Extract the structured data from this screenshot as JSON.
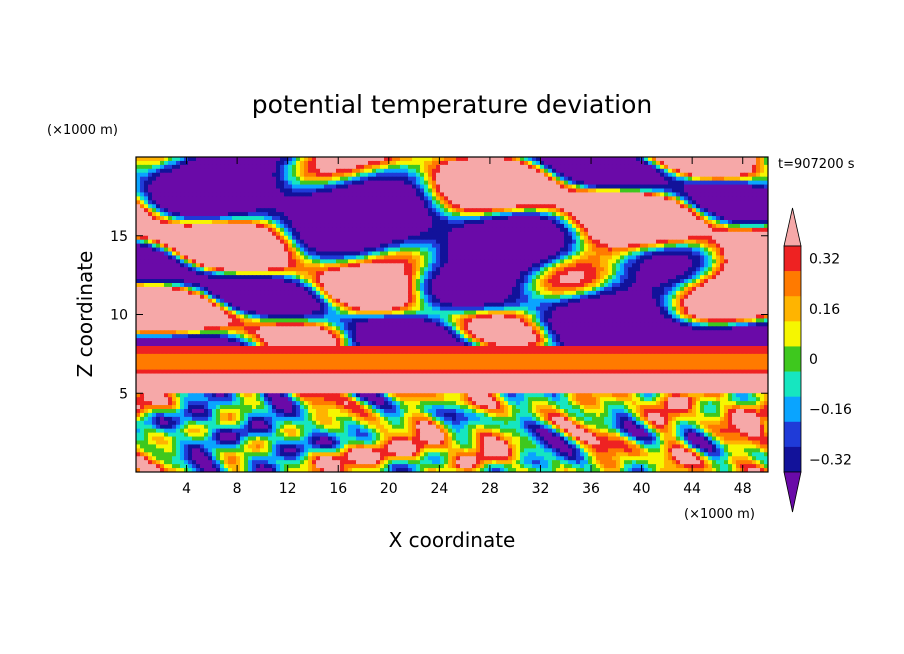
{
  "chart_data": {
    "type": "heatmap",
    "title": "potential temperature deviation",
    "xlabel": "X coordinate",
    "ylabel": "Z coordinate",
    "x_unit": "(×1000 m)",
    "y_unit": "(×1000 m)",
    "time_label": "t=907200 s",
    "xlim": [
      0,
      50
    ],
    "ylim": [
      0,
      20
    ],
    "x_ticks": [
      4,
      8,
      12,
      16,
      20,
      24,
      28,
      32,
      36,
      40,
      44,
      48
    ],
    "y_ticks": [
      5,
      10,
      15
    ],
    "colorbar": {
      "levels": [
        -0.4,
        -0.32,
        -0.24,
        -0.16,
        -0.08,
        0,
        0.08,
        0.16,
        0.24,
        0.32,
        0.4
      ],
      "tick_values": [
        -0.32,
        -0.16,
        0,
        0.16,
        0.32
      ],
      "tick_labels": [
        "−0.32",
        "−0.16",
        "0",
        "0.16",
        "0.32"
      ],
      "colors": [
        "#6a0aa8",
        "#12129a",
        "#1f3bd8",
        "#0aa4ff",
        "#16e6c0",
        "#3ec81e",
        "#f6f600",
        "#ffb400",
        "#ff7a00",
        "#ee2222",
        "#f6a8a8"
      ],
      "extend": "both"
    },
    "bands": [
      {
        "z_range": [
          0,
          5
        ],
        "pattern": "turbulent eddies, mixed full colour range"
      },
      {
        "z_range": [
          5,
          6.2
        ],
        "dominant": "#f6a8a8"
      },
      {
        "z_range": [
          6.2,
          6.5
        ],
        "dominant": "#ff7a00"
      },
      {
        "z_range": [
          6.5,
          7.6
        ],
        "dominant": "#f6f600"
      },
      {
        "z_range": [
          7.6,
          8
        ],
        "dominant": "#ff7a00"
      },
      {
        "z_range": [
          8,
          10
        ],
        "dominant": "#6a0aa8"
      },
      {
        "z_range": [
          10,
          20
        ],
        "pattern": "patches of #6a0aa8 and #f6a8a8 with thin transition contours"
      }
    ]
  }
}
